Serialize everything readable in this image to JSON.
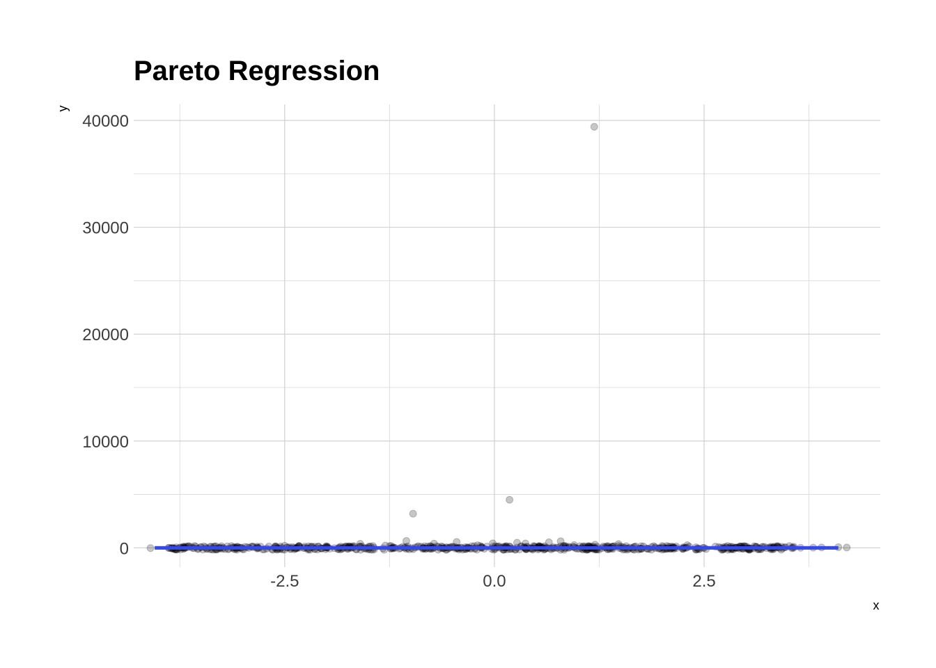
{
  "chart_data": {
    "type": "scatter",
    "title": "Pareto Regression",
    "xlabel": "x",
    "ylabel": "y",
    "xlim": [
      -4.3,
      4.6
    ],
    "ylim": [
      -1800,
      41500
    ],
    "x_ticks": [
      -2.5,
      0.0,
      2.5
    ],
    "x_tick_labels": [
      "-2.5",
      "0.0",
      "2.5"
    ],
    "x_minor_ticks": [
      -3.75,
      -1.25,
      1.25,
      3.75
    ],
    "y_ticks": [
      0,
      10000,
      20000,
      30000,
      40000
    ],
    "y_tick_labels": [
      "0",
      "10000",
      "20000",
      "30000",
      "40000"
    ],
    "y_minor_ticks": [
      5000,
      15000,
      25000,
      35000
    ],
    "grid": true,
    "legend": "none",
    "colors": {
      "points": "#000000",
      "point_opacity": 0.22,
      "fit_line": "#3348f0"
    },
    "points": [
      {
        "x": 1.19,
        "y": 39400
      },
      {
        "x": 0.18,
        "y": 4500
      },
      {
        "x": -0.97,
        "y": 3200
      },
      {
        "x": -1.05,
        "y": 650
      },
      {
        "x": 0.79,
        "y": 620
      },
      {
        "x": -0.45,
        "y": 550
      },
      {
        "x": 0.65,
        "y": 520
      },
      {
        "x": 0.27,
        "y": 480
      },
      {
        "x": -1.6,
        "y": 380
      },
      {
        "x": 1.48,
        "y": 360
      },
      {
        "x": -0.72,
        "y": 400
      },
      {
        "x": -0.02,
        "y": 420
      },
      {
        "x": 0.37,
        "y": 410
      },
      {
        "x": 1.2,
        "y": 300
      },
      {
        "x": 2.3,
        "y": 250
      },
      {
        "x": -2.5,
        "y": 200
      },
      {
        "x": 2.0,
        "y": 180
      },
      {
        "x": -1.3,
        "y": 220
      },
      {
        "x": 0.95,
        "y": 260
      },
      {
        "x": -0.2,
        "y": 240
      },
      {
        "x": 1.75,
        "y": 150
      },
      {
        "x": -2.1,
        "y": 120
      },
      {
        "x": 3.2,
        "y": 100
      },
      {
        "x": -3.5,
        "y": 60
      },
      {
        "x": -4.1,
        "y": -20
      },
      {
        "x": -3.85,
        "y": -40
      },
      {
        "x": -3.7,
        "y": -30
      },
      {
        "x": -3.6,
        "y": -10
      },
      {
        "x": 3.8,
        "y": 20
      },
      {
        "x": 3.9,
        "y": 40
      },
      {
        "x": 4.1,
        "y": 60
      },
      {
        "x": 4.2,
        "y": 30
      },
      {
        "x": 3.55,
        "y": 50
      },
      {
        "x": 3.65,
        "y": 10
      }
    ],
    "cluster": {
      "x_from": -3.9,
      "x_to": 3.6,
      "count": 600,
      "spread": 180
    },
    "fit_line": [
      [
        -4.05,
        0
      ],
      [
        4.1,
        0
      ]
    ]
  }
}
